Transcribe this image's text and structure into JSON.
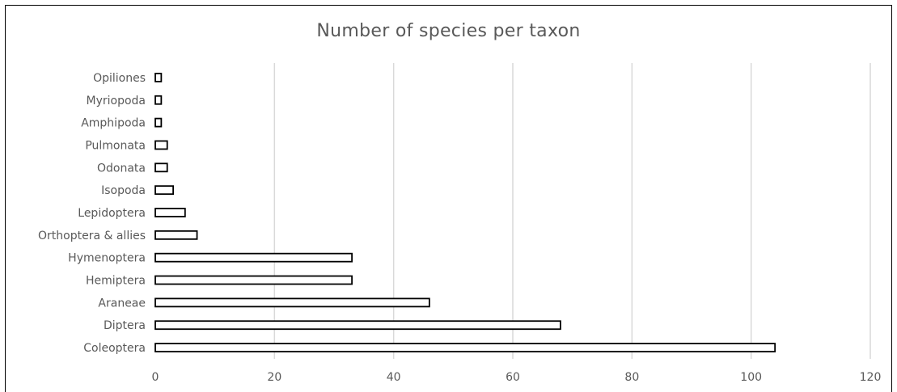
{
  "chart_data": {
    "type": "bar",
    "orientation": "horizontal",
    "title": "Number of species per taxon",
    "xlabel": "",
    "ylabel": "",
    "categories": [
      "Opiliones",
      "Myriopoda",
      "Amphipoda",
      "Pulmonata",
      "Odonata",
      "Isopoda",
      "Lepidoptera",
      "Orthoptera & allies",
      "Hymenoptera",
      "Hemiptera",
      "Araneae",
      "Diptera",
      "Coleoptera"
    ],
    "values": [
      1,
      1,
      1,
      2,
      2,
      3,
      5,
      7,
      33,
      33,
      46,
      68,
      104
    ],
    "xlim": [
      0,
      120
    ],
    "xticks": [
      "0",
      "20",
      "40",
      "60",
      "80",
      "100",
      "120"
    ],
    "grid": true,
    "legend": "none",
    "bar_fill": "#ffffff",
    "bar_stroke": "#000000",
    "grid_color": "#d9d9d9",
    "text_color": "#595959"
  }
}
